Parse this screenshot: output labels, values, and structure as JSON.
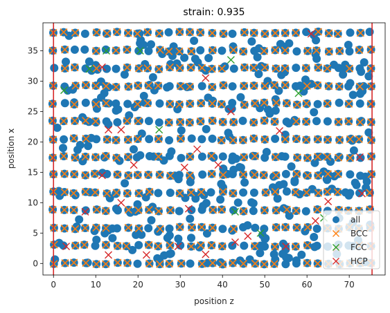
{
  "chart_data": {
    "type": "scatter",
    "title": "strain: 0.935",
    "xlabel": "position z",
    "ylabel": "position x",
    "xlim": [
      -2.5,
      78.5
    ],
    "ylim": [
      -1.9,
      39.6
    ],
    "xticks": [
      0,
      10,
      20,
      30,
      40,
      50,
      60,
      70
    ],
    "yticks": [
      0,
      5,
      10,
      15,
      20,
      25,
      30,
      35
    ],
    "grid": false,
    "legend_position": "bottom-right",
    "reference_lines": {
      "orientation": "vertical",
      "x": [
        0,
        75.4
      ],
      "color": "#d62728"
    },
    "lattice": {
      "x_start": 0,
      "x_end": 75,
      "x_step": 2.5,
      "y_start": 0,
      "y_end": 38,
      "y_step": 2.92
    },
    "series": [
      {
        "name": "all",
        "marker": "circle",
        "color": "#1f77b4"
      },
      {
        "name": "BCC",
        "marker": "x",
        "color": "#ff7f0e"
      },
      {
        "name": "FCC",
        "marker": "x",
        "color": "#2ca02c",
        "points": [
          [
            20.5,
            35
          ],
          [
            42,
            33.5
          ],
          [
            8.5,
            32
          ],
          [
            43,
            8.5
          ],
          [
            49,
            5
          ],
          [
            64,
            7.5
          ],
          [
            2.5,
            28.5
          ],
          [
            25,
            22
          ],
          [
            58,
            28
          ],
          [
            12.5,
            35
          ]
        ]
      },
      {
        "name": "HCP",
        "marker": "x",
        "color": "#d62728",
        "points": [
          [
            61,
            37.8
          ],
          [
            11.5,
            32.3
          ],
          [
            36,
            30.5
          ],
          [
            42,
            25
          ],
          [
            13,
            22
          ],
          [
            53.5,
            21.8
          ],
          [
            16,
            22
          ],
          [
            34,
            18.8
          ],
          [
            72.5,
            17.5
          ],
          [
            19,
            16.2
          ],
          [
            31,
            15.8
          ],
          [
            39,
            16.2
          ],
          [
            11.5,
            14.5
          ],
          [
            16,
            10
          ],
          [
            7.5,
            8.5
          ],
          [
            32,
            9
          ],
          [
            65,
            10.2
          ],
          [
            73,
            11.5
          ],
          [
            62,
            7
          ],
          [
            46,
            4.5
          ],
          [
            3,
            2.8
          ],
          [
            13,
            1.4
          ],
          [
            22,
            1.4
          ],
          [
            29.5,
            2.8
          ],
          [
            36,
            1.5
          ],
          [
            43,
            3.5
          ],
          [
            55,
            2.8
          ],
          [
            67,
            2.5
          ]
        ]
      }
    ]
  }
}
